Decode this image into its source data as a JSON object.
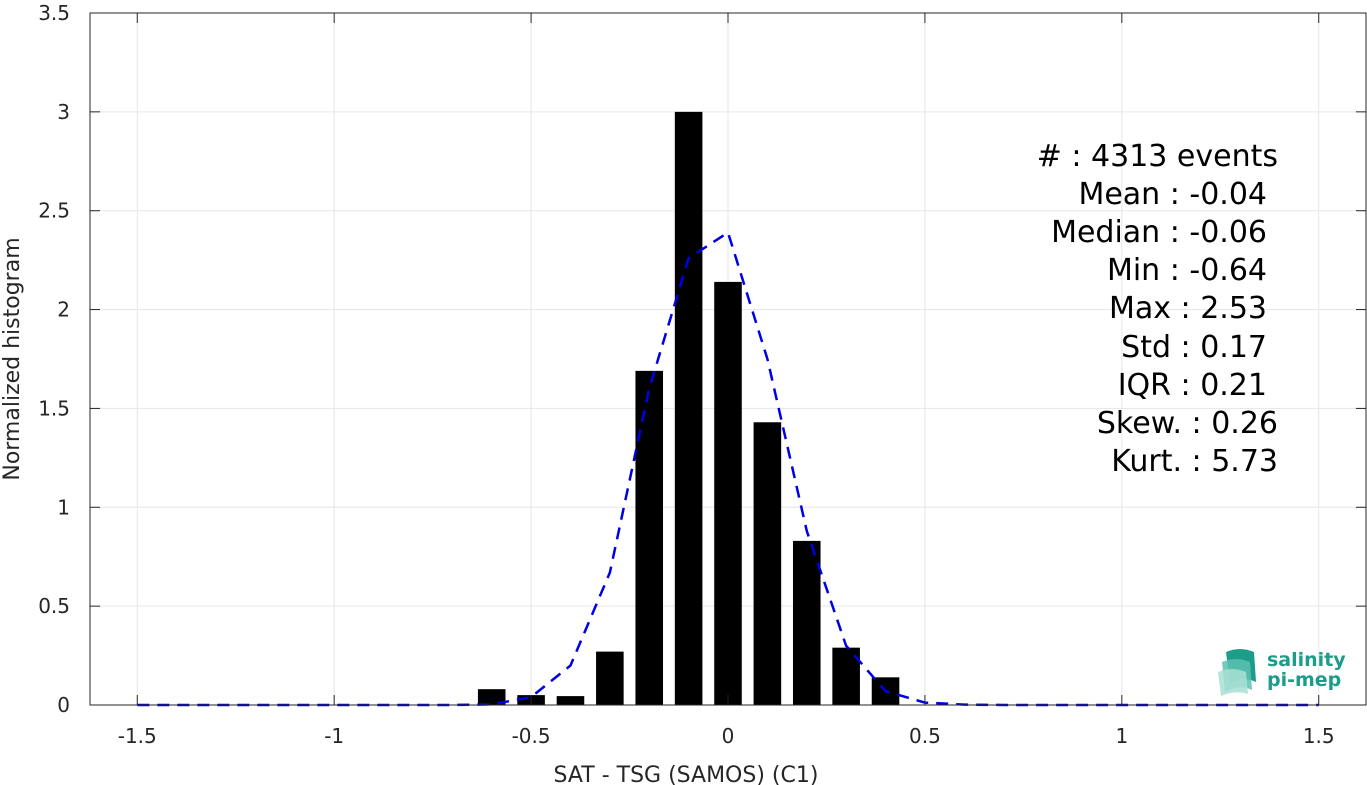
{
  "chart_data": {
    "type": "bar",
    "xlabel": "SAT - TSG (SAMOS) (C1)",
    "ylabel": "Normalized histogram",
    "xlim": [
      -1.62,
      1.62
    ],
    "ylim": [
      0,
      3.5
    ],
    "grid": true,
    "xticks": [
      -1.5,
      -1,
      -0.5,
      0,
      0.5,
      1,
      1.5
    ],
    "xtick_labels": [
      "-1.5",
      "-1",
      "-0.5",
      "0",
      "0.5",
      "1",
      "1.5"
    ],
    "yticks": [
      0,
      0.5,
      1,
      1.5,
      2,
      2.5,
      3,
      3.5
    ],
    "ytick_labels": [
      "0",
      "0.5",
      "1",
      "1.5",
      "2",
      "2.5",
      "3",
      "3.5"
    ],
    "bin_width": 0.07,
    "bars": [
      {
        "x": -0.6,
        "value": 0.08
      },
      {
        "x": -0.5,
        "value": 0.05
      },
      {
        "x": -0.4,
        "value": 0.045
      },
      {
        "x": -0.3,
        "value": 0.27
      },
      {
        "x": -0.2,
        "value": 1.69
      },
      {
        "x": -0.1,
        "value": 3.0
      },
      {
        "x": 0.0,
        "value": 2.14
      },
      {
        "x": 0.1,
        "value": 1.43
      },
      {
        "x": 0.2,
        "value": 0.83
      },
      {
        "x": 0.3,
        "value": 0.29
      },
      {
        "x": 0.4,
        "value": 0.14
      }
    ],
    "series": [
      {
        "type": "line",
        "style": "dashed",
        "color": "#0000e6",
        "x": [
          -1.5,
          -1.4,
          -1.3,
          -1.2,
          -1.1,
          -1.0,
          -0.9,
          -0.8,
          -0.7,
          -0.6,
          -0.5,
          -0.4,
          -0.3,
          -0.2,
          -0.1,
          0.0,
          0.1,
          0.2,
          0.3,
          0.4,
          0.5,
          0.6,
          0.7,
          0.8,
          0.9,
          1.0,
          1.1,
          1.2,
          1.3,
          1.4,
          1.5
        ],
        "y": [
          0,
          0,
          0,
          0,
          0,
          0,
          0,
          0,
          0,
          0.003,
          0.04,
          0.2,
          0.67,
          1.6,
          2.26,
          2.39,
          1.75,
          0.88,
          0.3,
          0.07,
          0.012,
          0.002,
          0,
          0,
          0,
          0,
          0,
          0,
          0,
          0,
          0
        ]
      }
    ],
    "bar_color": "#000000",
    "stats_lines": [
      "#  : 4313 events",
      "Mean : -0.04",
      "Median : -0.06",
      "Min : -0.64",
      "Max : 2.53",
      "Std : 0.17",
      "IQR : 0.21",
      "Skew. : 0.26",
      "Kurt. : 5.73"
    ]
  },
  "logo": {
    "line1": "salinity",
    "line2": "pi-mep",
    "color": "#1e9c8a"
  }
}
